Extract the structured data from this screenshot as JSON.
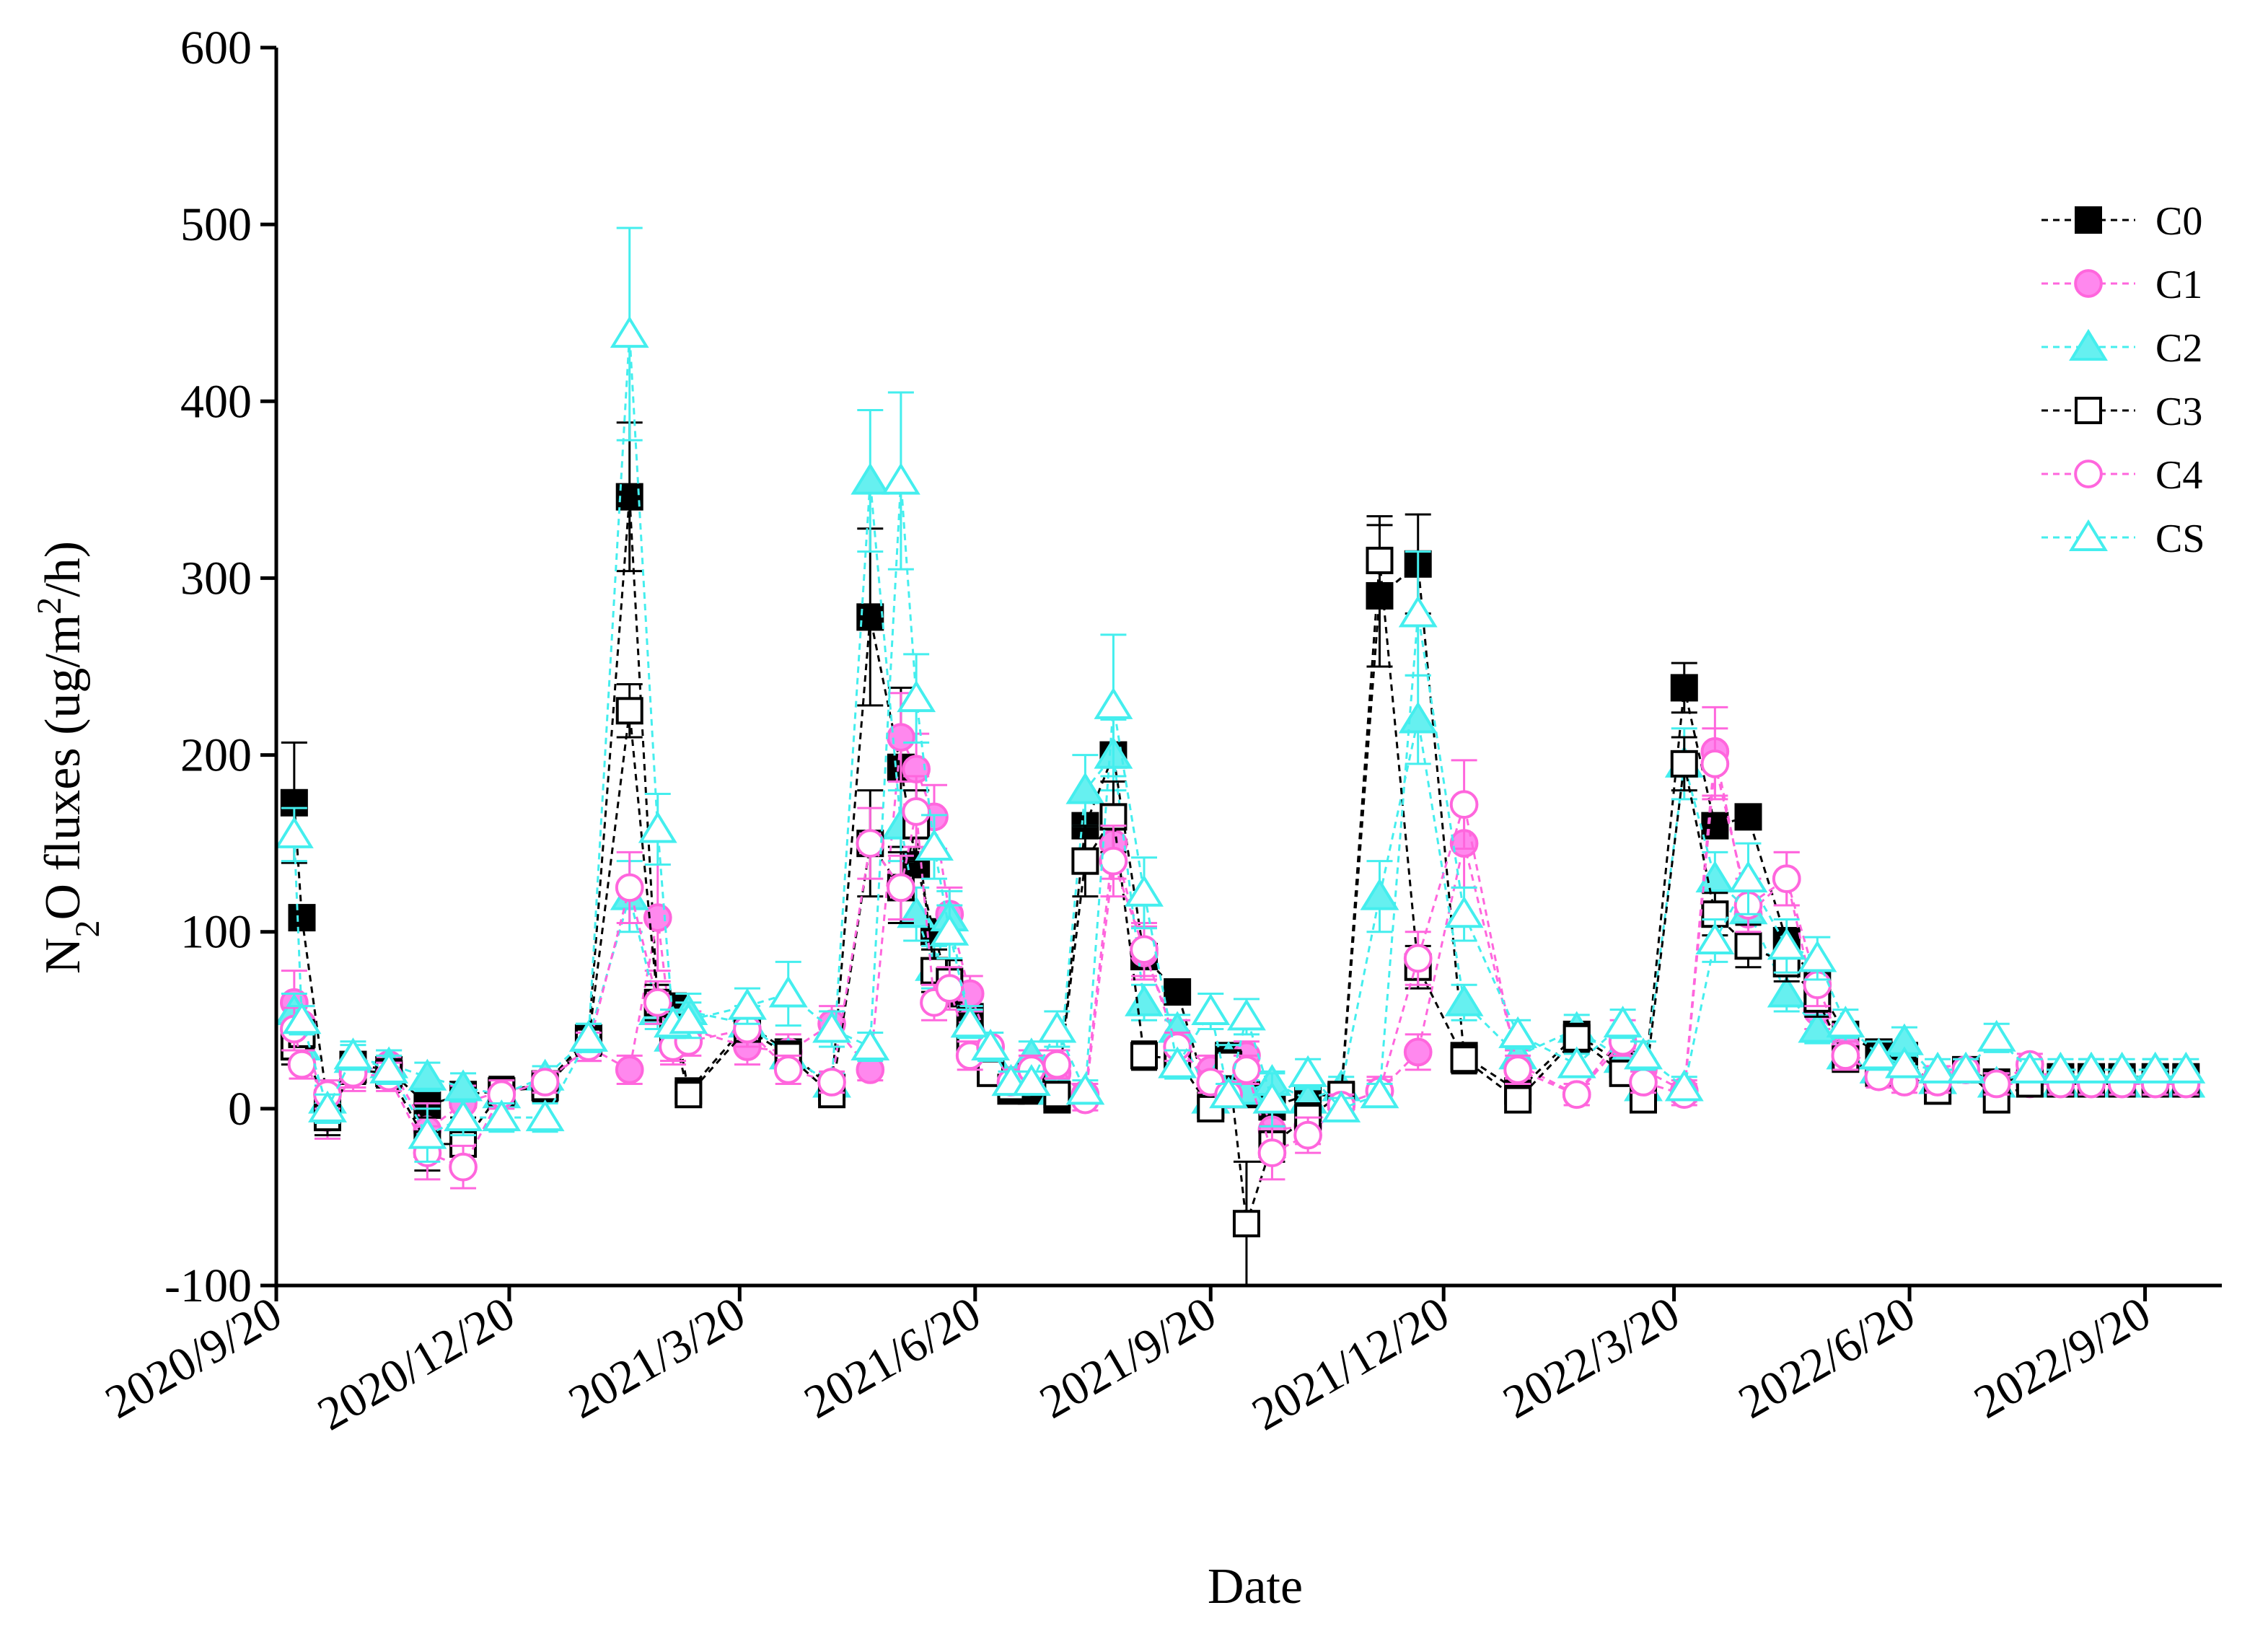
{
  "chart_data": {
    "type": "line",
    "xlabel": "Date",
    "ylabel": "N₂O fluxes (ug/m²/h)",
    "ylabel_parts": {
      "a": "N",
      "sub": "2",
      "b": "O fluxes (ug/m",
      "sup": "2",
      "c": "/h)"
    },
    "ylim": [
      -100,
      600
    ],
    "yticks": [
      -100,
      0,
      100,
      200,
      300,
      400,
      500,
      600
    ],
    "xlim": [
      "2020-09-20",
      "2022-10-20"
    ],
    "xticks": [
      "2020-09-20",
      "2020-12-20",
      "2021-03-20",
      "2021-06-20",
      "2021-09-20",
      "2021-12-20",
      "2022-03-20",
      "2022-06-20",
      "2022-09-20"
    ],
    "xtick_labels": [
      "2020/9/20",
      "2020/12/20",
      "2021/3/20",
      "2021/6/20",
      "2021/9/20",
      "2021/12/20",
      "2022/3/20",
      "2022/6/20",
      "2022/9/20"
    ],
    "legend_position": "top-right",
    "dates": [
      "2020-09-27",
      "2020-09-30",
      "2020-10-10",
      "2020-10-20",
      "2020-11-03",
      "2020-11-18",
      "2020-12-02",
      "2020-12-17",
      "2021-01-03",
      "2021-01-20",
      "2021-02-05",
      "2021-02-16",
      "2021-02-22",
      "2021-02-28",
      "2021-03-23",
      "2021-04-08",
      "2021-04-25",
      "2021-05-10",
      "2021-05-22",
      "2021-05-28",
      "2021-06-04",
      "2021-06-10",
      "2021-06-18",
      "2021-06-26",
      "2021-07-04",
      "2021-07-12",
      "2021-07-22",
      "2021-08-02",
      "2021-08-13",
      "2021-08-25",
      "2021-09-07",
      "2021-09-20",
      "2021-09-27",
      "2021-10-04",
      "2021-10-14",
      "2021-10-28",
      "2021-11-10",
      "2021-11-25",
      "2021-12-10",
      "2021-12-28",
      "2022-01-18",
      "2022-02-10",
      "2022-02-28",
      "2022-03-08",
      "2022-03-24",
      "2022-04-05",
      "2022-04-18",
      "2022-05-03",
      "2022-05-15",
      "2022-05-26",
      "2022-06-08",
      "2022-06-18",
      "2022-07-01",
      "2022-07-12",
      "2022-07-24",
      "2022-08-06",
      "2022-08-18",
      "2022-08-30",
      "2022-09-11",
      "2022-09-24",
      "2022-10-06"
    ],
    "series": [
      {
        "name": "C0",
        "color": "#000000",
        "fill": "#000000",
        "marker": "square",
        "filled": true,
        "values": [
          173,
          108,
          3,
          25,
          22,
          2,
          8,
          10,
          14,
          40,
          346,
          58,
          58,
          10,
          48,
          32,
          12,
          278,
          193,
          138,
          100,
          65,
          52,
          25,
          10,
          10,
          5,
          160,
          200,
          86,
          66,
          2,
          30,
          8,
          1,
          8,
          7,
          290,
          308,
          30,
          10,
          42,
          25,
          8,
          238,
          160,
          165,
          95,
          70,
          42,
          32,
          30,
          10,
          22,
          15,
          18,
          18,
          18,
          18,
          18,
          18
        ],
        "errors": [
          34,
          0,
          0,
          0,
          0,
          0,
          0,
          0,
          0,
          0,
          42,
          0,
          0,
          0,
          0,
          0,
          0,
          50,
          45,
          0,
          0,
          0,
          0,
          0,
          0,
          0,
          0,
          0,
          0,
          0,
          0,
          0,
          0,
          0,
          0,
          0,
          0,
          40,
          28,
          0,
          0,
          0,
          0,
          0,
          14,
          0,
          0,
          0,
          0,
          0,
          0,
          0,
          0,
          0,
          0,
          0,
          0,
          0,
          0,
          0,
          0
        ]
      },
      {
        "name": "C1",
        "color": "#ff66dd",
        "fill": "#ff88ee",
        "marker": "circle",
        "filled": true,
        "values": [
          60,
          48,
          -5,
          20,
          25,
          -12,
          3,
          10,
          14,
          35,
          22,
          108,
          35,
          45,
          35,
          32,
          48,
          22,
          210,
          192,
          165,
          110,
          65,
          35,
          16,
          25,
          20,
          8,
          150,
          88,
          40,
          22,
          12,
          30,
          -12,
          -10,
          2,
          10,
          32,
          150,
          25,
          8,
          42,
          22,
          10,
          202,
          110,
          130,
          55,
          35,
          20,
          20,
          18,
          22,
          14,
          14,
          14,
          14,
          14,
          14,
          14
        ],
        "errors": [
          18,
          10,
          12,
          10,
          8,
          15,
          10,
          6,
          6,
          8,
          8,
          30,
          10,
          10,
          10,
          10,
          10,
          6,
          25,
          20,
          18,
          15,
          10,
          8,
          6,
          8,
          8,
          6,
          20,
          15,
          10,
          8,
          6,
          8,
          10,
          10,
          6,
          8,
          10,
          25,
          8,
          6,
          8,
          6,
          6,
          25,
          15,
          15,
          10,
          8,
          6,
          6,
          6,
          6,
          6,
          6,
          6,
          6,
          6,
          6,
          6
        ]
      },
      {
        "name": "C2",
        "color": "#44eeee",
        "fill": "#66f0f0",
        "marker": "triangle",
        "filled": true,
        "values": [
          55,
          35,
          5,
          28,
          25,
          18,
          12,
          8,
          18,
          40,
          120,
          55,
          40,
          55,
          48,
          30,
          14,
          355,
          160,
          110,
          80,
          108,
          48,
          30,
          15,
          30,
          10,
          180,
          200,
          60,
          45,
          5,
          28,
          10,
          15,
          5,
          12,
          120,
          220,
          60,
          30,
          45,
          28,
          12,
          195,
          130,
          112,
          65,
          45,
          30,
          22,
          38,
          16,
          22,
          14,
          22,
          14,
          22,
          14,
          22,
          14
        ],
        "errors": [
          10,
          8,
          8,
          8,
          8,
          8,
          8,
          6,
          6,
          8,
          20,
          10,
          8,
          10,
          10,
          8,
          6,
          40,
          20,
          15,
          12,
          15,
          10,
          8,
          6,
          8,
          6,
          20,
          20,
          10,
          8,
          6,
          8,
          6,
          6,
          6,
          6,
          20,
          25,
          10,
          8,
          8,
          8,
          6,
          20,
          15,
          15,
          10,
          8,
          8,
          6,
          8,
          6,
          6,
          6,
          6,
          6,
          6,
          6,
          6,
          6
        ]
      },
      {
        "name": "C3",
        "color": "#000000",
        "fill": "#ffffff",
        "marker": "square",
        "filled": false,
        "values": [
          35,
          42,
          -5,
          22,
          20,
          -20,
          -20,
          10,
          12,
          38,
          225,
          60,
          45,
          8,
          45,
          30,
          8,
          150,
          125,
          160,
          78,
          72,
          40,
          20,
          12,
          18,
          8,
          140,
          165,
          30,
          28,
          0,
          25,
          -65,
          -20,
          -5,
          8,
          310,
          80,
          28,
          5,
          40,
          20,
          5,
          195,
          110,
          92,
          82,
          62,
          28,
          20,
          20,
          10,
          22,
          5,
          14,
          14,
          14,
          14,
          14,
          14
        ],
        "errors": [
          10,
          8,
          10,
          8,
          8,
          15,
          15,
          8,
          8,
          8,
          15,
          10,
          8,
          6,
          10,
          8,
          6,
          30,
          20,
          20,
          12,
          12,
          8,
          6,
          6,
          6,
          6,
          20,
          20,
          8,
          8,
          6,
          8,
          35,
          10,
          8,
          6,
          25,
          12,
          8,
          6,
          8,
          6,
          6,
          15,
          12,
          12,
          10,
          10,
          6,
          6,
          6,
          6,
          6,
          6,
          6,
          6,
          6,
          6,
          6,
          6
        ]
      },
      {
        "name": "C4",
        "color": "#ff66dd",
        "fill": "#ffffff",
        "marker": "circle",
        "filled": false,
        "values": [
          45,
          25,
          8,
          20,
          18,
          -25,
          -33,
          8,
          15,
          35,
          125,
          60,
          35,
          38,
          45,
          22,
          15,
          150,
          125,
          168,
          60,
          68,
          30,
          35,
          15,
          22,
          25,
          5,
          140,
          90,
          35,
          15,
          8,
          22,
          -25,
          -15,
          2,
          10,
          85,
          172,
          22,
          8,
          38,
          15,
          8,
          195,
          115,
          130,
          70,
          30,
          18,
          15,
          15,
          22,
          14,
          25,
          14,
          14,
          14,
          14,
          14
        ],
        "errors": [
          12,
          8,
          8,
          8,
          8,
          15,
          12,
          8,
          6,
          8,
          20,
          12,
          8,
          8,
          10,
          8,
          6,
          20,
          18,
          20,
          10,
          12,
          8,
          8,
          6,
          8,
          8,
          6,
          20,
          15,
          8,
          6,
          6,
          8,
          15,
          10,
          6,
          6,
          15,
          25,
          8,
          6,
          8,
          6,
          6,
          20,
          15,
          15,
          12,
          8,
          6,
          6,
          6,
          6,
          6,
          6,
          6,
          6,
          6,
          6,
          6
        ]
      },
      {
        "name": "CS",
        "color": "#44eeee",
        "fill": "#ffffff",
        "marker": "triangle",
        "filled": false,
        "values": [
          155,
          50,
          0,
          30,
          22,
          -15,
          -5,
          -5,
          -5,
          40,
          438,
          158,
          48,
          50,
          58,
          65,
          45,
          35,
          355,
          232,
          148,
          100,
          48,
          35,
          15,
          15,
          45,
          10,
          228,
          122,
          25,
          55,
          8,
          52,
          5,
          20,
          0,
          8,
          280,
          110,
          42,
          25,
          48,
          30,
          12,
          95,
          130,
          92,
          85,
          48,
          30,
          25,
          22,
          22,
          40,
          22,
          22,
          22,
          22,
          22,
          22
        ],
        "errors": [
          15,
          8,
          8,
          8,
          8,
          15,
          10,
          8,
          8,
          8,
          60,
          20,
          8,
          10,
          10,
          18,
          10,
          8,
          50,
          25,
          18,
          15,
          8,
          8,
          6,
          6,
          10,
          6,
          40,
          20,
          8,
          10,
          6,
          10,
          15,
          8,
          6,
          6,
          35,
          15,
          8,
          6,
          8,
          8,
          6,
          12,
          20,
          15,
          12,
          8,
          8,
          6,
          6,
          6,
          8,
          6,
          6,
          6,
          6,
          6,
          6
        ]
      }
    ]
  }
}
